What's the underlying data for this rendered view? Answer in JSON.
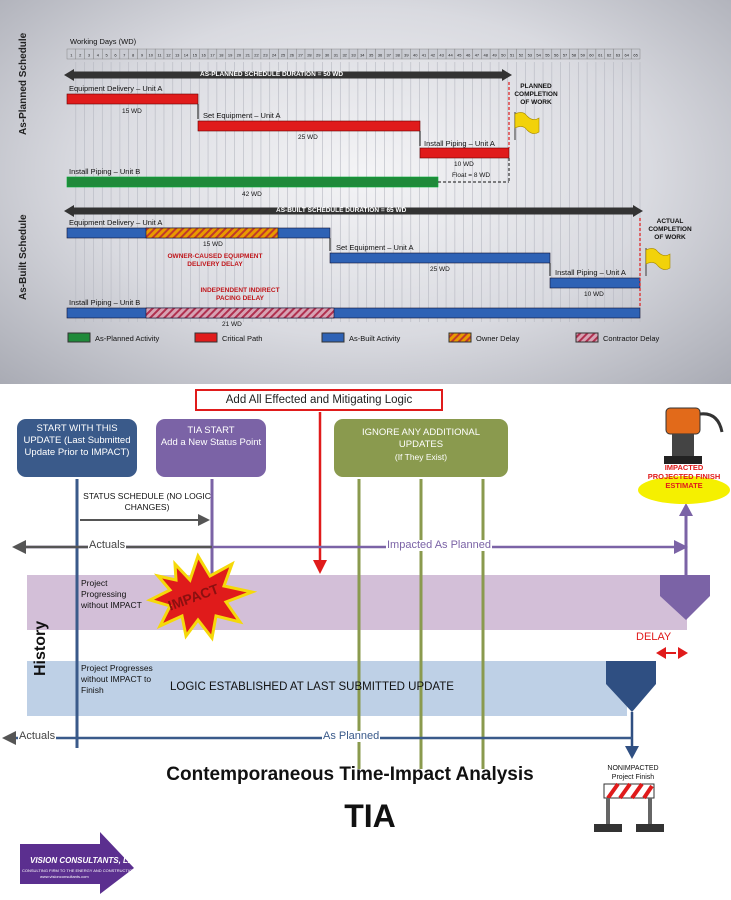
{
  "top_chart": {
    "working_days_label": "Working Days (WD)",
    "day_numbers": [
      "1",
      "2",
      "3",
      "4",
      "5",
      "6",
      "7",
      "8",
      "9",
      "10",
      "11",
      "12",
      "13",
      "14",
      "15",
      "16",
      "17",
      "18",
      "19",
      "20",
      "21",
      "22",
      "23",
      "24",
      "25",
      "26",
      "27",
      "28",
      "29",
      "30",
      "31",
      "32",
      "33",
      "34",
      "35",
      "36",
      "37",
      "38",
      "39",
      "40",
      "41",
      "42",
      "43",
      "44",
      "45",
      "46",
      "47",
      "48",
      "49",
      "50",
      "51",
      "52",
      "53",
      "54",
      "55",
      "56",
      "57",
      "58",
      "59",
      "60",
      "61",
      "62",
      "63",
      "64",
      "65"
    ],
    "planned_section_label": "As-Planned Schedule",
    "built_section_label": "As-Built Schedule",
    "planned_duration": "AS-PLANNED SCHEDULE DURATION = 50 WD",
    "built_duration": "AS-BUILT SCHEDULE DURATION = 65 WD",
    "planned_completion": "PLANNED COMPLETION OF WORK",
    "actual_completion": "ACTUAL COMPLETION OF WORK",
    "planned_tasks": [
      {
        "name": "Equipment Delivery – Unit A",
        "duration": "15 WD"
      },
      {
        "name": "Set Equipment – Unit A",
        "duration": "25 WD"
      },
      {
        "name": "Install Piping – Unit A",
        "duration": "10 WD"
      },
      {
        "name": "Install Piping – Unit B",
        "duration": "42 WD"
      }
    ],
    "float_label": "Float = 8 WD",
    "built_tasks": [
      {
        "name": "Equipment Delivery – Unit A",
        "duration": "15 WD"
      },
      {
        "name": "Set Equipment – Unit A",
        "duration": "25 WD"
      },
      {
        "name": "Install Piping – Unit A",
        "duration": "10 WD"
      },
      {
        "name": "Install Piping – Unit B",
        "duration": "21 WD"
      }
    ],
    "owner_delay_note": "OWNER-CAUSED EQUIPMENT DELIVERY DELAY",
    "contractor_delay_note": "INDEPENDENT INDIRECT PACING DELAY",
    "legend": [
      {
        "label": "As-Planned Activity",
        "color": "#1f8a3a"
      },
      {
        "label": "Critical Path",
        "color": "#e01b1b"
      },
      {
        "label": "As-Built Activity",
        "color": "#2e62b5"
      },
      {
        "label": "Owner Delay",
        "color": "#e0a000"
      },
      {
        "label": "Contractor Delay",
        "color": "#c44a6a"
      }
    ]
  },
  "tia": {
    "add_logic": "Add All Effected and Mitigating Logic",
    "start_box": "START WITH THIS UPDATE (Last Submitted Update Prior to IMPACT)",
    "tia_start_title": "TIA START",
    "tia_start_sub": "Add a New Status Point",
    "ignore_title": "IGNORE ANY ADDITIONAL UPDATES",
    "ignore_sub": "(If They Exist)",
    "status_schedule": "STATUS SCHEDULE (NO LOGIC CHANGES)",
    "actuals_upper": "Actuals",
    "impacted_as_planned": "Impacted As Planned",
    "lane1_text": "Project Progressing without IMPACT",
    "impact_word": "IMPACT",
    "history": "History",
    "delay": "DELAY",
    "lane2_text": "Project Progresses without IMPACT to Finish",
    "logic_established": "LOGIC ESTABLISHED AT LAST SUBMITTED UPDATE",
    "actuals_lower": "Actuals",
    "as_planned": "As Planned",
    "impacted_finish": "IMPACTED PROJECTED FINISH ESTIMATE",
    "nonimpacted_finish": "NONIMPACTED Project Finish",
    "title": "Contemporaneous Time-Impact Analysis",
    "subtitle": "TIA",
    "logo_name": "VISION CONSULTANTS, LLC",
    "logo_tagline": "CONSULTING FIRM TO THE ENERGY AND CONSTRUCTION INDUSTRY",
    "logo_url": "www.visionconsultants.com",
    "colors": {
      "blue_dark": "#3a5a8a",
      "purple": "#7b63a6",
      "olive": "#8a9a4e",
      "red": "#e01b1b",
      "lane_blue": "#bed0e6",
      "lane_purple": "#d3bfd8"
    }
  }
}
